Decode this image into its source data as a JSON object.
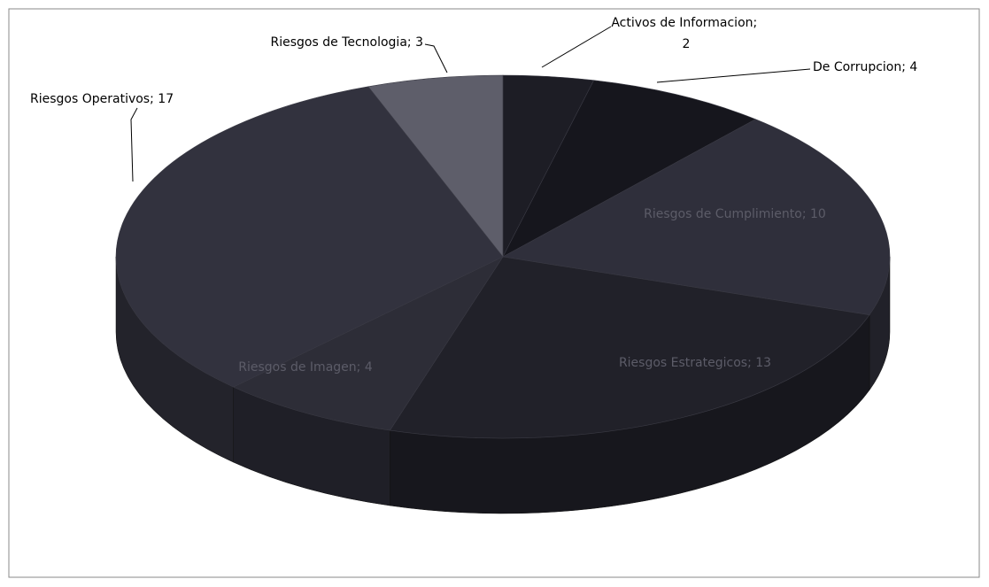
{
  "chart_data": {
    "type": "pie3d",
    "categories": [
      "Activos de Informacion",
      "De Corrupcion",
      "Riesgos de Cumplimiento",
      "Riesgos Estrategicos",
      "Riesgos de Imagen",
      "Riesgos Operativos",
      "Riesgos de Tecnologia"
    ],
    "values": [
      2,
      4,
      10,
      13,
      4,
      17,
      3
    ],
    "colors": [
      "#1d1d25",
      "#16161d",
      "#2f2f3b",
      "#212129",
      "#2d2d37",
      "#32323e",
      "#5e5e6a"
    ],
    "label_separator": "; "
  }
}
